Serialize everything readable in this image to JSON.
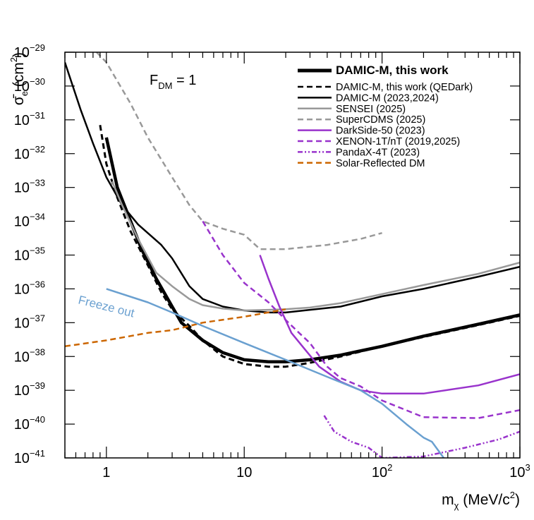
{
  "chart_data": {
    "type": "line",
    "title": "",
    "xlabel": "m_χ (MeV/c²)",
    "ylabel": "σ̄_e (cm²)",
    "xscale": "log",
    "yscale": "log",
    "xlim": [
      0.5,
      1000
    ],
    "ylim": [
      1e-41,
      1e-29
    ],
    "grid": false,
    "legend_position": "top-right",
    "x_tick_labels": [
      {
        "value": 1,
        "base": "1",
        "exp": ""
      },
      {
        "value": 10,
        "base": "10",
        "exp": ""
      },
      {
        "value": 100,
        "base": "10",
        "exp": "2"
      },
      {
        "value": 1000,
        "base": "10",
        "exp": "3"
      }
    ],
    "y_tick_labels": [
      {
        "value": 1e-29,
        "base": "10",
        "exp": "−29"
      },
      {
        "value": 1e-30,
        "base": "10",
        "exp": "−30"
      },
      {
        "value": 1e-31,
        "base": "10",
        "exp": "−31"
      },
      {
        "value": 1e-32,
        "base": "10",
        "exp": "−32"
      },
      {
        "value": 1e-33,
        "base": "10",
        "exp": "−33"
      },
      {
        "value": 1e-34,
        "base": "10",
        "exp": "−34"
      },
      {
        "value": 1e-35,
        "base": "10",
        "exp": "−35"
      },
      {
        "value": 1e-36,
        "base": "10",
        "exp": "−36"
      },
      {
        "value": 1e-37,
        "base": "10",
        "exp": "−37"
      },
      {
        "value": 1e-38,
        "base": "10",
        "exp": "−38"
      },
      {
        "value": 1e-39,
        "base": "10",
        "exp": "−39"
      },
      {
        "value": 1e-40,
        "base": "10",
        "exp": "−40"
      },
      {
        "value": 1e-41,
        "base": "10",
        "exp": "−41"
      }
    ],
    "xlabel_parts": {
      "main": "m",
      "sub": "χ",
      "rest": " (MeV/c",
      "sup": "2",
      "end": ")"
    },
    "ylabel_parts": {
      "main": "σ̄",
      "sub": "e",
      "rest": " (cm",
      "sup": "2",
      "end": ")"
    },
    "annotations": [
      {
        "id": "fdm",
        "main": "F",
        "sub": "DM",
        "rest": " = 1"
      },
      {
        "id": "freeze",
        "text": "Freeze out",
        "color": "#6aa0d0"
      }
    ],
    "series": [
      {
        "name": "DAMIC-M, this work",
        "color": "#000000",
        "style": "solid",
        "width": 4.5,
        "bold": true,
        "points": [
          [
            1.0,
            3e-32
          ],
          [
            1.2,
            1e-33
          ],
          [
            1.5,
            1e-34
          ],
          [
            1.8,
            1.5e-35
          ],
          [
            2.3,
            2e-36
          ],
          [
            3,
            3e-37
          ],
          [
            3.5,
            1e-37
          ],
          [
            5,
            3e-38
          ],
          [
            7,
            1.3e-38
          ],
          [
            10,
            8e-39
          ],
          [
            15,
            7e-39
          ],
          [
            20,
            7e-39
          ],
          [
            30,
            8e-39
          ],
          [
            50,
            1.1e-38
          ],
          [
            100,
            2e-38
          ],
          [
            200,
            4e-38
          ],
          [
            500,
            9e-38
          ],
          [
            1000,
            1.7e-37
          ]
        ]
      },
      {
        "name": "DAMIC-M, this work (QEDark)",
        "color": "#000000",
        "style": "dashed",
        "width": 3,
        "points": [
          [
            0.9,
            7e-32
          ],
          [
            1.0,
            5e-33
          ],
          [
            1.2,
            5e-34
          ],
          [
            1.5,
            5e-35
          ],
          [
            2,
            5e-36
          ],
          [
            2.5,
            8e-37
          ],
          [
            3,
            2.5e-37
          ],
          [
            4,
            8e-38
          ],
          [
            5,
            3e-38
          ],
          [
            7,
            1e-38
          ],
          [
            10,
            6e-39
          ],
          [
            15,
            5e-39
          ],
          [
            20,
            5e-39
          ],
          [
            30,
            6.5e-39
          ],
          [
            50,
            1e-38
          ],
          [
            100,
            2e-38
          ],
          [
            200,
            3.8e-38
          ],
          [
            500,
            8.5e-38
          ],
          [
            1000,
            1.6e-37
          ]
        ]
      },
      {
        "name": "DAMIC-M (2023,2024)",
        "color": "#000000",
        "style": "solid",
        "width": 2.5,
        "points": [
          [
            0.5,
            5e-30
          ],
          [
            0.65,
            2e-31
          ],
          [
            0.8,
            2e-32
          ],
          [
            1.0,
            2e-33
          ],
          [
            1.3,
            3e-34
          ],
          [
            1.7,
            8e-35
          ],
          [
            2.5,
            2e-35
          ],
          [
            3,
            8e-36
          ],
          [
            4,
            1.2e-36
          ],
          [
            5,
            5e-37
          ],
          [
            7,
            3e-37
          ],
          [
            10,
            2.3e-37
          ],
          [
            15,
            2e-37
          ],
          [
            20,
            2e-37
          ],
          [
            30,
            2.4e-37
          ],
          [
            50,
            3e-37
          ],
          [
            100,
            6e-37
          ],
          [
            200,
            1e-36
          ],
          [
            500,
            2.3e-36
          ],
          [
            1000,
            4.5e-36
          ]
        ]
      },
      {
        "name": "SENSEI (2025)",
        "color": "#999999",
        "style": "solid",
        "width": 2.5,
        "points": [
          [
            1.1,
            1.5e-33
          ],
          [
            1.3,
            3e-34
          ],
          [
            1.7,
            3e-35
          ],
          [
            2.3,
            3e-36
          ],
          [
            3,
            1.2e-36
          ],
          [
            4,
            5e-37
          ],
          [
            5,
            3.3e-37
          ],
          [
            7,
            2.6e-37
          ],
          [
            10,
            2.3e-37
          ],
          [
            15,
            2.4e-37
          ],
          [
            20,
            2.5e-37
          ],
          [
            30,
            2.8e-37
          ],
          [
            50,
            3.8e-37
          ],
          [
            100,
            7e-37
          ],
          [
            200,
            1.3e-36
          ],
          [
            500,
            2.8e-36
          ],
          [
            1000,
            6e-36
          ]
        ]
      },
      {
        "name": "SuperCDMS (2025)",
        "color": "#999999",
        "style": "dashed",
        "width": 2.5,
        "points": [
          [
            0.85,
            1e-29
          ],
          [
            1,
            5e-30
          ],
          [
            1.5,
            3e-31
          ],
          [
            2,
            3e-32
          ],
          [
            3,
            2e-33
          ],
          [
            4,
            3e-34
          ],
          [
            5,
            1e-34
          ],
          [
            7,
            6e-35
          ],
          [
            10,
            4e-35
          ],
          [
            13,
            1.5e-35
          ],
          [
            20,
            1.5e-35
          ],
          [
            40,
            2e-35
          ],
          [
            70,
            3e-35
          ],
          [
            100,
            4.5e-35
          ]
        ]
      },
      {
        "name": "DarkSide-50 (2023)",
        "color": "#9933cc",
        "style": "solid",
        "width": 2.5,
        "points": [
          [
            13,
            1e-35
          ],
          [
            15,
            2e-36
          ],
          [
            18,
            3e-37
          ],
          [
            22,
            5e-38
          ],
          [
            28,
            1.5e-38
          ],
          [
            35,
            5e-39
          ],
          [
            50,
            1.8e-39
          ],
          [
            70,
            1e-39
          ],
          [
            100,
            8e-40
          ],
          [
            200,
            8e-40
          ],
          [
            500,
            1.4e-39
          ],
          [
            1000,
            3e-39
          ]
        ]
      },
      {
        "name": "XENON-1T/nT (2019,2025)",
        "color": "#9933cc",
        "style": "dashed",
        "width": 2.5,
        "points": [
          [
            5,
            1e-34
          ],
          [
            7,
            1e-35
          ],
          [
            10,
            1.5e-36
          ],
          [
            15,
            4e-37
          ],
          [
            20,
            1.2e-37
          ],
          [
            25,
            5e-38
          ],
          [
            30,
            2.5e-38
          ],
          [
            40,
            5e-39
          ],
          [
            50,
            2.3e-39
          ],
          [
            70,
            1.3e-39
          ],
          [
            100,
            5e-40
          ],
          [
            200,
            1.6e-40
          ],
          [
            500,
            1.5e-40
          ],
          [
            1000,
            2.6e-40
          ]
        ]
      },
      {
        "name": "PandaX-4T (2023)",
        "color": "#9933cc",
        "style": "dashdot",
        "width": 2.5,
        "points": [
          [
            38,
            1.8e-40
          ],
          [
            45,
            6e-41
          ],
          [
            60,
            3e-41
          ],
          [
            80,
            2e-41
          ],
          [
            100,
            1e-41
          ],
          [
            200,
            1.1e-41
          ],
          [
            400,
            2e-41
          ],
          [
            700,
            3.5e-41
          ],
          [
            1000,
            6e-41
          ]
        ]
      },
      {
        "name": "Solar-Reflected DM",
        "color": "#cc6600",
        "style": "dashed",
        "width": 2.5,
        "points": [
          [
            0.5,
            2e-38
          ],
          [
            1,
            3e-38
          ],
          [
            2,
            5e-38
          ],
          [
            3,
            6e-38
          ],
          [
            5,
            1e-37
          ],
          [
            10,
            1.5e-37
          ],
          [
            20,
            2.5e-37
          ]
        ]
      },
      {
        "name": "Freeze out",
        "color": "#6aa0d0",
        "style": "solid",
        "width": 2.5,
        "in_legend": false,
        "points": [
          [
            1,
            1e-36
          ],
          [
            2,
            4e-37
          ],
          [
            3,
            2e-37
          ],
          [
            5,
            8e-38
          ],
          [
            10,
            2.5e-38
          ],
          [
            20,
            8e-39
          ],
          [
            40,
            2.5e-39
          ],
          [
            70,
            1e-39
          ],
          [
            100,
            4e-40
          ],
          [
            150,
            1e-40
          ],
          [
            200,
            4e-41
          ],
          [
            230,
            3e-41
          ],
          [
            280,
            1e-41
          ]
        ]
      }
    ]
  }
}
